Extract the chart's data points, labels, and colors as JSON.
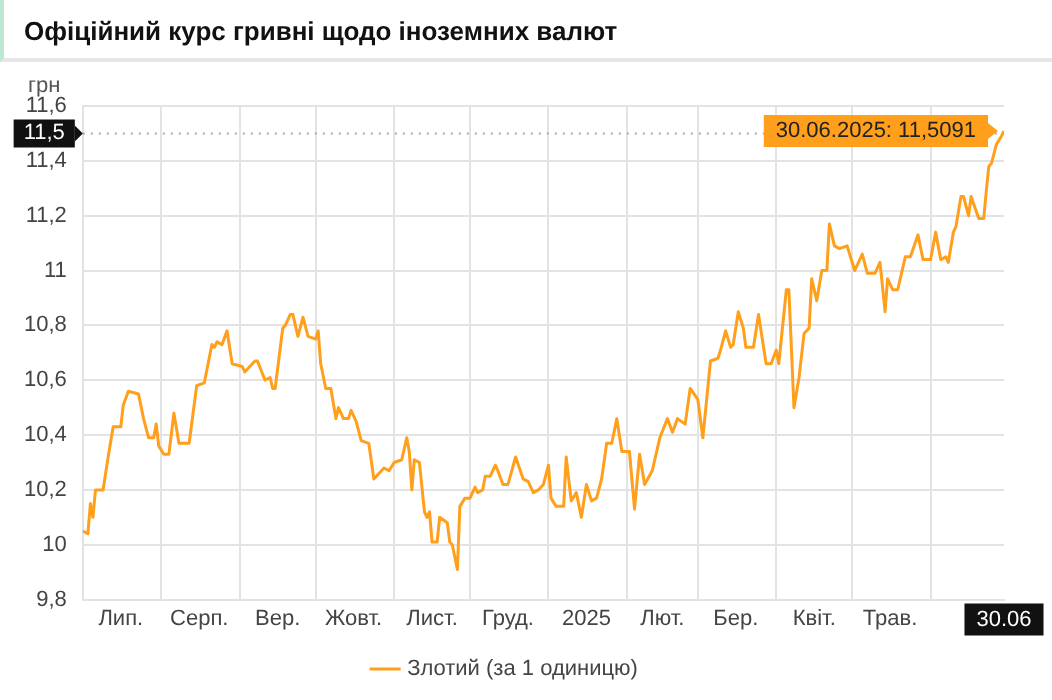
{
  "chart_data": {
    "type": "line",
    "title": "Офіційний курс гривні щодо іноземних валют",
    "ylabel": "грн",
    "x": [
      "2024-07-01",
      "2024-07-03",
      "2024-07-04",
      "2024-07-05",
      "2024-07-06",
      "2024-07-09",
      "2024-07-11",
      "2024-07-13",
      "2024-07-16",
      "2024-07-17",
      "2024-07-19",
      "2024-07-23",
      "2024-07-25",
      "2024-07-27",
      "2024-07-29",
      "2024-07-30",
      "2024-07-31",
      "2024-08-02",
      "2024-08-04",
      "2024-08-06",
      "2024-08-08",
      "2024-08-12",
      "2024-08-15",
      "2024-08-18",
      "2024-08-21",
      "2024-08-22",
      "2024-08-23",
      "2024-08-25",
      "2024-08-27",
      "2024-08-29",
      "2024-09-02",
      "2024-09-03",
      "2024-09-07",
      "2024-09-08",
      "2024-09-11",
      "2024-09-13",
      "2024-09-14",
      "2024-09-15",
      "2024-09-18",
      "2024-09-19",
      "2024-09-21",
      "2024-09-22",
      "2024-09-24",
      "2024-09-26",
      "2024-09-28",
      "2024-10-01",
      "2024-10-02",
      "2024-10-03",
      "2024-10-05",
      "2024-10-07",
      "2024-10-09",
      "2024-10-10",
      "2024-10-12",
      "2024-10-14",
      "2024-10-15",
      "2024-10-17",
      "2024-10-19",
      "2024-10-22",
      "2024-10-24",
      "2024-10-26",
      "2024-10-28",
      "2024-10-30",
      "2024-11-01",
      "2024-11-04",
      "2024-11-06",
      "2024-11-07",
      "2024-11-08",
      "2024-11-09",
      "2024-11-11",
      "2024-11-13",
      "2024-11-14",
      "2024-11-15",
      "2024-11-16",
      "2024-11-18",
      "2024-11-19",
      "2024-11-22",
      "2024-11-23",
      "2024-11-24",
      "2024-11-26",
      "2024-11-27",
      "2024-11-29",
      "2024-12-01",
      "2024-12-03",
      "2024-12-04",
      "2024-12-06",
      "2024-12-07",
      "2024-12-09",
      "2024-12-11",
      "2024-12-12",
      "2024-12-14",
      "2024-12-16",
      "2024-12-19",
      "2024-12-22",
      "2024-12-24",
      "2024-12-26",
      "2024-12-28",
      "2024-12-30",
      "2025-01-01",
      "2025-01-02",
      "2025-01-04",
      "2025-01-07",
      "2025-01-08",
      "2025-01-10",
      "2025-01-12",
      "2025-01-14",
      "2025-01-16",
      "2025-01-18",
      "2025-01-20",
      "2025-01-22",
      "2025-01-24",
      "2025-01-26",
      "2025-01-28",
      "2025-01-30",
      "2025-02-02",
      "2025-02-04",
      "2025-02-06",
      "2025-02-08",
      "2025-02-11",
      "2025-02-14",
      "2025-02-17",
      "2025-02-19",
      "2025-02-21",
      "2025-02-24",
      "2025-02-26",
      "2025-03-01",
      "2025-03-03",
      "2025-03-06",
      "2025-03-09",
      "2025-03-10",
      "2025-03-12",
      "2025-03-14",
      "2025-03-15",
      "2025-03-17",
      "2025-03-19",
      "2025-03-20",
      "2025-03-23",
      "2025-03-25",
      "2025-03-28",
      "2025-03-30",
      "2025-04-01",
      "2025-04-02",
      "2025-04-05",
      "2025-04-06",
      "2025-04-08",
      "2025-04-10",
      "2025-04-12",
      "2025-04-14",
      "2025-04-15",
      "2025-04-17",
      "2025-04-19",
      "2025-04-21",
      "2025-04-22",
      "2025-04-24",
      "2025-04-26",
      "2025-04-29",
      "2025-05-02",
      "2025-05-05",
      "2025-05-07",
      "2025-05-10",
      "2025-05-12",
      "2025-05-14",
      "2025-05-15",
      "2025-05-17",
      "2025-05-19",
      "2025-05-22",
      "2025-05-24",
      "2025-05-27",
      "2025-05-29",
      "2025-06-01",
      "2025-06-03",
      "2025-06-05",
      "2025-06-07",
      "2025-06-08",
      "2025-06-10",
      "2025-06-11",
      "2025-06-13",
      "2025-06-14",
      "2025-06-16",
      "2025-06-17",
      "2025-06-20",
      "2025-06-22",
      "2025-06-23",
      "2025-06-24",
      "2025-06-25",
      "2025-06-27",
      "2025-06-29",
      "2025-06-30"
    ],
    "series": [
      {
        "name": "Злотий (за 1 одиницю)",
        "color": "#ff9f1c",
        "values": [
          10.05,
          10.04,
          10.15,
          10.1,
          10.2,
          10.2,
          10.32,
          10.43,
          10.43,
          10.51,
          10.56,
          10.55,
          10.46,
          10.39,
          10.39,
          10.44,
          10.36,
          10.33,
          10.33,
          10.48,
          10.37,
          10.37,
          10.58,
          10.59,
          10.73,
          10.72,
          10.74,
          10.73,
          10.78,
          10.66,
          10.65,
          10.63,
          10.67,
          10.67,
          10.6,
          10.61,
          10.57,
          10.57,
          10.79,
          10.8,
          10.84,
          10.84,
          10.76,
          10.83,
          10.76,
          10.75,
          10.78,
          10.66,
          10.57,
          10.57,
          10.46,
          10.5,
          10.46,
          10.46,
          10.49,
          10.45,
          10.38,
          10.37,
          10.24,
          10.26,
          10.28,
          10.27,
          10.3,
          10.31,
          10.39,
          10.34,
          10.2,
          10.31,
          10.3,
          10.12,
          10.1,
          10.12,
          10.01,
          10.01,
          10.1,
          10.08,
          10.01,
          10.0,
          9.91,
          10.14,
          10.17,
          10.17,
          10.21,
          10.19,
          10.2,
          10.25,
          10.25,
          10.29,
          10.27,
          10.22,
          10.22,
          10.32,
          10.24,
          10.23,
          10.19,
          10.2,
          10.22,
          10.29,
          10.17,
          10.14,
          10.14,
          10.32,
          10.16,
          10.19,
          10.1,
          10.22,
          10.16,
          10.17,
          10.24,
          10.37,
          10.37,
          10.46,
          10.34,
          10.34,
          10.13,
          10.33,
          10.22,
          10.27,
          10.39,
          10.46,
          10.41,
          10.46,
          10.44,
          10.57,
          10.53,
          10.39,
          10.67,
          10.68,
          10.71,
          10.78,
          10.72,
          10.73,
          10.85,
          10.79,
          10.72,
          10.72,
          10.84,
          10.66,
          10.66,
          10.71,
          10.66,
          10.93,
          10.93,
          10.5,
          10.61,
          10.77,
          10.79,
          10.97,
          10.89,
          11.0,
          11.0,
          11.17,
          11.09,
          11.08,
          11.09,
          11.0,
          11.06,
          10.99,
          10.99,
          11.03,
          10.85,
          10.97,
          10.93,
          10.93,
          11.05,
          11.05,
          11.13,
          11.04,
          11.04,
          11.14,
          11.04,
          11.05,
          11.03,
          11.14,
          11.16,
          11.27,
          11.27,
          11.2,
          11.27,
          11.19,
          11.19,
          11.29,
          11.38,
          11.39,
          11.46,
          11.49,
          11.5091
        ]
      }
    ],
    "xlim": [
      "2024-07-01",
      "2025-06-30"
    ],
    "xticks": [
      {
        "value": "2024-07-01",
        "label": null
      },
      {
        "value": "2024-07-16",
        "label": "Лип."
      },
      {
        "value": "2024-08-01",
        "label": null
      },
      {
        "value": "2024-08-16",
        "label": "Серп."
      },
      {
        "value": "2024-09-01",
        "label": null
      },
      {
        "value": "2024-09-16",
        "label": "Вер."
      },
      {
        "value": "2024-10-01",
        "label": null
      },
      {
        "value": "2024-10-16",
        "label": "Жовт."
      },
      {
        "value": "2024-11-01",
        "label": null
      },
      {
        "value": "2024-11-16",
        "label": "Лист."
      },
      {
        "value": "2024-12-01",
        "label": null
      },
      {
        "value": "2024-12-16",
        "label": "Груд."
      },
      {
        "value": "2025-01-01",
        "label": null
      },
      {
        "value": "2025-01-16",
        "label": "2025"
      },
      {
        "value": "2025-02-01",
        "label": null
      },
      {
        "value": "2025-02-15",
        "label": "Лют."
      },
      {
        "value": "2025-03-01",
        "label": null
      },
      {
        "value": "2025-03-16",
        "label": "Бер."
      },
      {
        "value": "2025-04-01",
        "label": null
      },
      {
        "value": "2025-04-16",
        "label": "Квіт."
      },
      {
        "value": "2025-05-01",
        "label": null
      },
      {
        "value": "2025-05-16",
        "label": "Трав."
      },
      {
        "value": "2025-06-01",
        "label": null
      },
      {
        "value": "2025-06-30",
        "label": "30.06"
      }
    ],
    "ylim": [
      9.8,
      11.6
    ],
    "yticks": [
      {
        "value": 9.8,
        "label": "9,8"
      },
      {
        "value": 10,
        "label": "10"
      },
      {
        "value": 10.2,
        "label": "10,2"
      },
      {
        "value": 10.4,
        "label": "10,4"
      },
      {
        "value": 10.6,
        "label": "10,6"
      },
      {
        "value": 10.8,
        "label": "10,8"
      },
      {
        "value": 11,
        "label": "11"
      },
      {
        "value": 11.2,
        "label": "11,2"
      },
      {
        "value": 11.4,
        "label": "11,4"
      },
      {
        "value": 11.6,
        "label": "11,6"
      }
    ],
    "ref_lines": [
      {
        "axis": "y",
        "value": 11.5,
        "label": "11,5",
        "color": "#aaaaaa",
        "line_style": "dotted"
      }
    ],
    "annotations": [
      {
        "text": "30.06.2025: 11,5091",
        "x": "2025-06-30",
        "y": 11.5091
      }
    ],
    "grid": true,
    "legend": "bottom",
    "marker": "none",
    "line_style": "solid"
  }
}
